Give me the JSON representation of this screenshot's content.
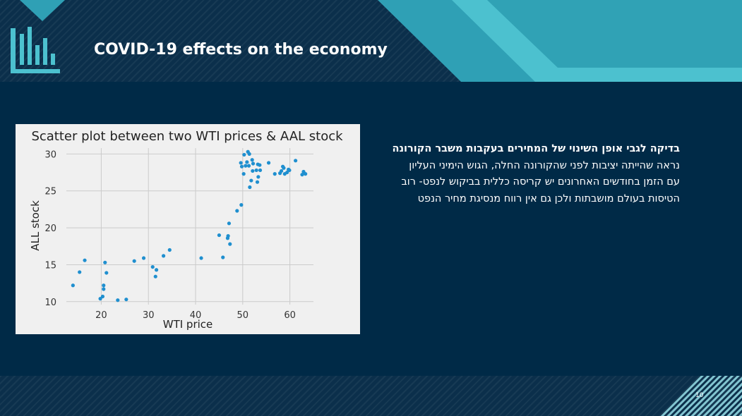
{
  "slide": {
    "title": "COVID-19 effects on the economy",
    "page_number": "10",
    "colors": {
      "background": "#002a47",
      "accent_teal": "#2fa0b5",
      "accent_light": "#4cc1cf",
      "marker": "#1f8fcf"
    }
  },
  "body": {
    "heading": "בדיקה לגבי אופן השינוי של המחירים בעקבות משבר הקורונה",
    "line1": "נראה שהייתה יציבות לפני שהקורונה החלה, הגוש הימיני העליון",
    "line2": "עם הזמן בחודשים האחרונים יש קריסה כללית בביקוש לנפט- רוב הטיסות בעולם מושבתות ולכן גם אין רווח מנסיגת מחיר הנפט"
  },
  "chart_data": {
    "type": "scatter",
    "title": "Scatter plot between two WTI prices & AAL stock",
    "xlabel": "WTI price",
    "ylabel": "ALL stock",
    "xlim": [
      12.6,
      65
    ],
    "ylim": [
      9.6,
      30.8
    ],
    "xticks": [
      20,
      30,
      40,
      50,
      60
    ],
    "yticks": [
      10,
      15,
      20,
      25,
      30
    ],
    "grid": true,
    "points": [
      [
        14,
        12.2
      ],
      [
        15.4,
        14
      ],
      [
        16.5,
        15.6
      ],
      [
        19.8,
        10.4
      ],
      [
        20.3,
        10.7
      ],
      [
        20.5,
        11.7
      ],
      [
        20.5,
        12.2
      ],
      [
        20.8,
        15.3
      ],
      [
        21.1,
        13.9
      ],
      [
        23.5,
        10.2
      ],
      [
        25.3,
        10.3
      ],
      [
        27,
        15.5
      ],
      [
        29,
        15.9
      ],
      [
        30.9,
        14.7
      ],
      [
        31.5,
        13.4
      ],
      [
        31.7,
        14.3
      ],
      [
        33.2,
        16.2
      ],
      [
        34.5,
        17
      ],
      [
        41.2,
        15.9
      ],
      [
        45,
        19
      ],
      [
        45.8,
        16
      ],
      [
        46.8,
        18.6
      ],
      [
        46.9,
        18.9
      ],
      [
        47.1,
        20.6
      ],
      [
        47.3,
        17.8
      ],
      [
        48.8,
        22.3
      ],
      [
        49.6,
        28.8
      ],
      [
        49.7,
        23.1
      ],
      [
        49.8,
        28.3
      ],
      [
        50.2,
        27.3
      ],
      [
        50.3,
        29.9
      ],
      [
        50.6,
        28.4
      ],
      [
        50.9,
        28.9
      ],
      [
        51.1,
        30.3
      ],
      [
        51.3,
        28.4
      ],
      [
        51.4,
        30
      ],
      [
        51.5,
        25.5
      ],
      [
        51.8,
        26.4
      ],
      [
        52,
        29.2
      ],
      [
        52.1,
        27.7
      ],
      [
        52.2,
        28.7
      ],
      [
        52.9,
        27.8
      ],
      [
        53.1,
        26.2
      ],
      [
        53.2,
        28.6
      ],
      [
        53.3,
        26.9
      ],
      [
        53.6,
        28.5
      ],
      [
        53.7,
        27.8
      ],
      [
        55.5,
        28.8
      ],
      [
        56.8,
        27.3
      ],
      [
        57.9,
        27.4
      ],
      [
        58.2,
        27.7
      ],
      [
        58.5,
        28.3
      ],
      [
        58.7,
        28.1
      ],
      [
        58.9,
        27.3
      ],
      [
        59.4,
        27.5
      ],
      [
        59.7,
        27.9
      ],
      [
        59.9,
        27.8
      ],
      [
        61.2,
        29.1
      ],
      [
        62.6,
        27.2
      ],
      [
        62.9,
        27.6
      ],
      [
        63.3,
        27.3
      ]
    ]
  }
}
